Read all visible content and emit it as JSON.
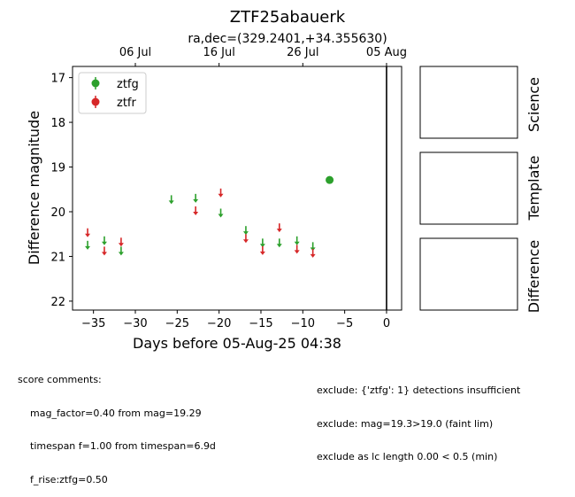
{
  "chart_data": {
    "type": "scatter",
    "title": "ZTF25abauerk",
    "subtitle": "ra,dec=(329.2401,+34.355630)",
    "xlabel": "Days before 05-Aug-25 04:38",
    "ylabel": "Difference magnitude",
    "xlim": [
      -37.5,
      1.8
    ],
    "ylim": [
      22.2,
      16.75
    ],
    "y_inverted": true,
    "x_ticks": [
      -35,
      -30,
      -25,
      -20,
      -15,
      -10,
      -5,
      0
    ],
    "x_tick_labels": [
      "−35",
      "−30",
      "−25",
      "−20",
      "−15",
      "−10",
      "−5",
      "0"
    ],
    "y_ticks": [
      17,
      18,
      19,
      20,
      21,
      22
    ],
    "y_tick_labels": [
      "17",
      "18",
      "19",
      "20",
      "21",
      "22"
    ],
    "top_axis_ticks": [
      -30,
      -20,
      -10,
      0
    ],
    "top_axis_labels": [
      "06 Jul",
      "16 Jul",
      "26 Jul",
      "05 Aug"
    ],
    "vline_x": 0,
    "legend_position": "upper-left",
    "grid": false,
    "series": [
      {
        "name": "ztfg",
        "color": "#2ca02c",
        "detections": [
          {
            "x": -6.8,
            "y": 19.29
          }
        ],
        "upper_limits": [
          {
            "x": -35.7,
            "y": 20.75
          },
          {
            "x": -33.7,
            "y": 20.65
          },
          {
            "x": -31.7,
            "y": 20.88
          },
          {
            "x": -25.7,
            "y": 19.73
          },
          {
            "x": -22.8,
            "y": 19.7
          },
          {
            "x": -19.8,
            "y": 20.03
          },
          {
            "x": -16.8,
            "y": 20.42
          },
          {
            "x": -14.8,
            "y": 20.7
          },
          {
            "x": -12.8,
            "y": 20.7
          },
          {
            "x": -10.7,
            "y": 20.65
          },
          {
            "x": -8.8,
            "y": 20.78
          }
        ]
      },
      {
        "name": "ztfr",
        "color": "#d62728",
        "detections": [],
        "upper_limits": [
          {
            "x": -35.7,
            "y": 20.47
          },
          {
            "x": -33.7,
            "y": 20.88
          },
          {
            "x": -31.7,
            "y": 20.68
          },
          {
            "x": -22.8,
            "y": 19.98
          },
          {
            "x": -19.8,
            "y": 19.58
          },
          {
            "x": -16.8,
            "y": 20.6
          },
          {
            "x": -14.8,
            "y": 20.87
          },
          {
            "x": -12.8,
            "y": 20.36
          },
          {
            "x": -10.7,
            "y": 20.84
          },
          {
            "x": -8.8,
            "y": 20.93
          }
        ]
      }
    ]
  },
  "panels": [
    "Science",
    "Template",
    "Difference"
  ],
  "score_comments": {
    "heading": "score comments:",
    "lines": [
      "mag_factor=0.40 from mag=19.29",
      "timespan f=1.00 from timespan=6.9d",
      "f_rise:ztfg=0.50"
    ]
  },
  "exclude_comments": [
    "exclude: {'ztfg': 1} detections insufficient",
    "exclude: mag=19.3>19.0 (faint lim)",
    "exclude as lc length 0.00 < 0.5 (min)"
  ]
}
